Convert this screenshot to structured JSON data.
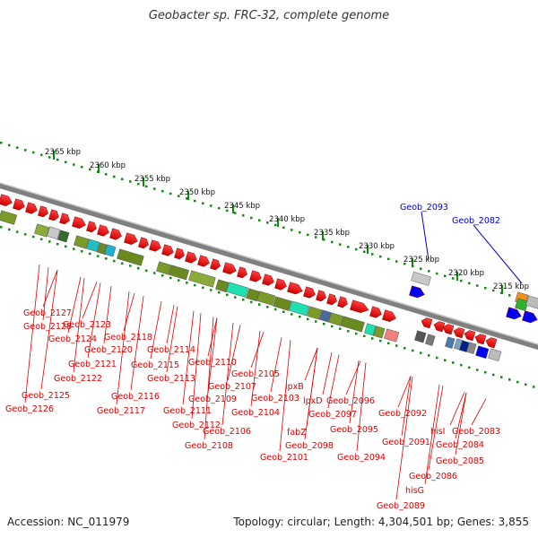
{
  "title": "Geobacter sp. FRC-32, complete genome",
  "footer": {
    "accession": "Accession: NC_011979",
    "summary": "Topology: circular; Length: 4,304,501 bp; Genes: 3,855"
  },
  "colors": {
    "plus_strand": "#ee0000",
    "label_red": "#dd0000",
    "label_blue": "#0000cc",
    "axis_green": "#118811",
    "backbone": "#808080"
  },
  "scale_ticks": [
    {
      "label": "2365 kbp"
    },
    {
      "label": "2360 kbp"
    },
    {
      "label": "2355 kbp"
    },
    {
      "label": "2350 kbp"
    },
    {
      "label": "2345 kbp"
    },
    {
      "label": "2340 kbp"
    },
    {
      "label": "2335 kbp"
    },
    {
      "label": "2330 kbp"
    },
    {
      "label": "2325 kbp"
    },
    {
      "label": "2320 kbp"
    },
    {
      "label": "2315 kbp"
    }
  ],
  "blue_labels": [
    {
      "text": "Geob_2093"
    },
    {
      "text": "Geob_2082"
    }
  ],
  "gene_labels": [
    {
      "text": "Geob_2127"
    },
    {
      "text": "Geob_2128"
    },
    {
      "text": "Geob_2123"
    },
    {
      "text": "Geob_2124"
    },
    {
      "text": "Geob_2118"
    },
    {
      "text": "Geob_2120"
    },
    {
      "text": "Geob_2114"
    },
    {
      "text": "Geob_2121"
    },
    {
      "text": "Geob_2115"
    },
    {
      "text": "Geob_2110"
    },
    {
      "text": "Geob_2122"
    },
    {
      "text": "Geob_2113"
    },
    {
      "text": "Geob_2105"
    },
    {
      "text": "lpxB"
    },
    {
      "text": "Geob_2107"
    },
    {
      "text": "Geob_2116"
    },
    {
      "text": "Geob_2125"
    },
    {
      "text": "Geob_2109"
    },
    {
      "text": "Geob_2103"
    },
    {
      "text": "lpxD"
    },
    {
      "text": "Geob_2096"
    },
    {
      "text": "Geob_2126"
    },
    {
      "text": "Geob_2117"
    },
    {
      "text": "Geob_2111"
    },
    {
      "text": "Geob_2104"
    },
    {
      "text": "Geob_2097"
    },
    {
      "text": "Geob_2092"
    },
    {
      "text": "Geob_2112"
    },
    {
      "text": "Geob_2095"
    },
    {
      "text": "Geob_2106"
    },
    {
      "text": "fabZ"
    },
    {
      "text": "Geob_2091"
    },
    {
      "text": "hisI"
    },
    {
      "text": "Geob_2083"
    },
    {
      "text": "Geob_2108"
    },
    {
      "text": "Geob_2098"
    },
    {
      "text": "Geob_2084"
    },
    {
      "text": "Geob_2101"
    },
    {
      "text": "Geob_2094"
    },
    {
      "text": "Geob_2085"
    },
    {
      "text": "Geob_2086"
    },
    {
      "text": "hisG"
    },
    {
      "text": "Geob_2089"
    }
  ]
}
